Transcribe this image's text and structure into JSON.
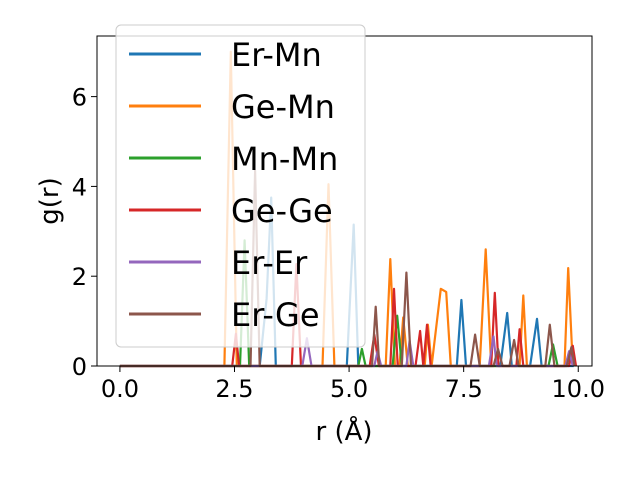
{
  "chart_data": {
    "type": "line",
    "title": "",
    "xlabel": "r (Å)",
    "ylabel": "g(r)",
    "xlim": [
      -0.5,
      10.3
    ],
    "ylim": [
      0,
      7.35
    ],
    "xticks": [
      0.0,
      2.5,
      5.0,
      7.5,
      10.0
    ],
    "xtick_labels": [
      "0.0",
      "2.5",
      "5.0",
      "7.5",
      "10.0"
    ],
    "yticks": [
      0,
      2,
      4,
      6
    ],
    "ytick_labels": [
      "0",
      "2",
      "4",
      "6"
    ],
    "grid": false,
    "legend_placement": "top-left",
    "series": [
      {
        "name": "Er-Mn",
        "color": "#1f77b4",
        "points": [
          [
            0,
            0
          ],
          [
            3.05,
            0
          ],
          [
            3.2,
            1.5
          ],
          [
            3.3,
            3.75
          ],
          [
            3.4,
            0
          ],
          [
            4.95,
            0
          ],
          [
            5.1,
            3.15
          ],
          [
            5.2,
            0
          ],
          [
            7.35,
            0
          ],
          [
            7.45,
            1.47
          ],
          [
            7.55,
            0
          ],
          [
            8.3,
            0
          ],
          [
            8.45,
            1.18
          ],
          [
            8.55,
            0
          ],
          [
            8.95,
            0
          ],
          [
            9.1,
            1.05
          ],
          [
            9.2,
            0
          ],
          [
            9.9,
            0
          ]
        ]
      },
      {
        "name": "Ge-Mn",
        "color": "#ff7f0e",
        "points": [
          [
            0,
            0
          ],
          [
            2.28,
            0
          ],
          [
            2.42,
            7.0
          ],
          [
            2.55,
            0
          ],
          [
            4.42,
            0
          ],
          [
            4.55,
            4.05
          ],
          [
            4.68,
            0
          ],
          [
            5.8,
            0
          ],
          [
            5.9,
            2.38
          ],
          [
            6.0,
            0
          ],
          [
            6.1,
            0
          ],
          [
            6.18,
            1.08
          ],
          [
            6.28,
            0
          ],
          [
            6.65,
            0
          ],
          [
            6.72,
            0.92
          ],
          [
            6.8,
            0
          ],
          [
            7.0,
            1.72
          ],
          [
            7.12,
            1.65
          ],
          [
            7.22,
            0
          ],
          [
            7.85,
            0
          ],
          [
            7.98,
            2.6
          ],
          [
            8.1,
            0
          ],
          [
            8.72,
            0
          ],
          [
            8.8,
            1.57
          ],
          [
            8.88,
            0
          ],
          [
            9.7,
            0
          ],
          [
            9.78,
            2.18
          ],
          [
            9.88,
            0
          ]
        ]
      },
      {
        "name": "Mn-Mn",
        "color": "#2ca02c",
        "points": [
          [
            0,
            0
          ],
          [
            2.62,
            0
          ],
          [
            2.72,
            2.8
          ],
          [
            2.82,
            0
          ],
          [
            5.2,
            0
          ],
          [
            5.28,
            0.38
          ],
          [
            5.36,
            0
          ],
          [
            5.95,
            0
          ],
          [
            6.05,
            1.12
          ],
          [
            6.15,
            0
          ],
          [
            9.35,
            0
          ],
          [
            9.45,
            0.48
          ],
          [
            9.55,
            0
          ]
        ]
      },
      {
        "name": "Ge-Ge",
        "color": "#d62728",
        "points": [
          [
            0,
            0
          ],
          [
            2.45,
            0
          ],
          [
            2.53,
            0.72
          ],
          [
            2.6,
            0
          ],
          [
            3.75,
            0
          ],
          [
            3.85,
            2.27
          ],
          [
            3.95,
            0
          ],
          [
            5.45,
            0
          ],
          [
            5.55,
            0.7
          ],
          [
            5.65,
            0
          ],
          [
            5.9,
            0
          ],
          [
            5.98,
            1.72
          ],
          [
            6.06,
            0
          ],
          [
            6.45,
            0
          ],
          [
            6.55,
            0.78
          ],
          [
            6.62,
            0
          ],
          [
            6.7,
            0.92
          ],
          [
            6.78,
            0
          ],
          [
            8.1,
            0
          ],
          [
            8.18,
            1.63
          ],
          [
            8.26,
            0
          ],
          [
            8.65,
            0
          ],
          [
            8.72,
            0.82
          ],
          [
            8.8,
            0
          ],
          [
            9.8,
            0
          ],
          [
            9.88,
            0.45
          ],
          [
            9.95,
            0
          ]
        ]
      },
      {
        "name": "Er-Er",
        "color": "#9467bd",
        "points": [
          [
            0,
            0
          ],
          [
            3.98,
            0
          ],
          [
            4.08,
            0.62
          ],
          [
            4.18,
            0
          ],
          [
            5.55,
            0
          ],
          [
            5.62,
            0.32
          ],
          [
            5.7,
            0
          ],
          [
            6.25,
            0
          ],
          [
            6.32,
            0.56
          ],
          [
            6.4,
            0
          ],
          [
            8.05,
            0
          ],
          [
            8.15,
            0.66
          ],
          [
            8.22,
            0
          ],
          [
            9.72,
            0
          ],
          [
            9.8,
            0.33
          ],
          [
            9.88,
            0
          ]
        ]
      },
      {
        "name": "Er-Ge",
        "color": "#8c564b",
        "points": [
          [
            0,
            0
          ],
          [
            2.85,
            0
          ],
          [
            2.95,
            4.35
          ],
          [
            3.05,
            0
          ],
          [
            5.5,
            0
          ],
          [
            5.58,
            1.32
          ],
          [
            5.66,
            0
          ],
          [
            6.15,
            0
          ],
          [
            6.25,
            2.08
          ],
          [
            6.35,
            0
          ],
          [
            7.65,
            0
          ],
          [
            7.75,
            0.7
          ],
          [
            7.85,
            0
          ],
          [
            8.15,
            0
          ],
          [
            8.25,
            0.38
          ],
          [
            8.35,
            0
          ],
          [
            8.5,
            0
          ],
          [
            8.6,
            0.58
          ],
          [
            8.7,
            0
          ],
          [
            9.28,
            0
          ],
          [
            9.38,
            0.92
          ],
          [
            9.48,
            0
          ],
          [
            9.75,
            0
          ],
          [
            9.85,
            0.42
          ],
          [
            9.92,
            0
          ]
        ]
      }
    ]
  }
}
